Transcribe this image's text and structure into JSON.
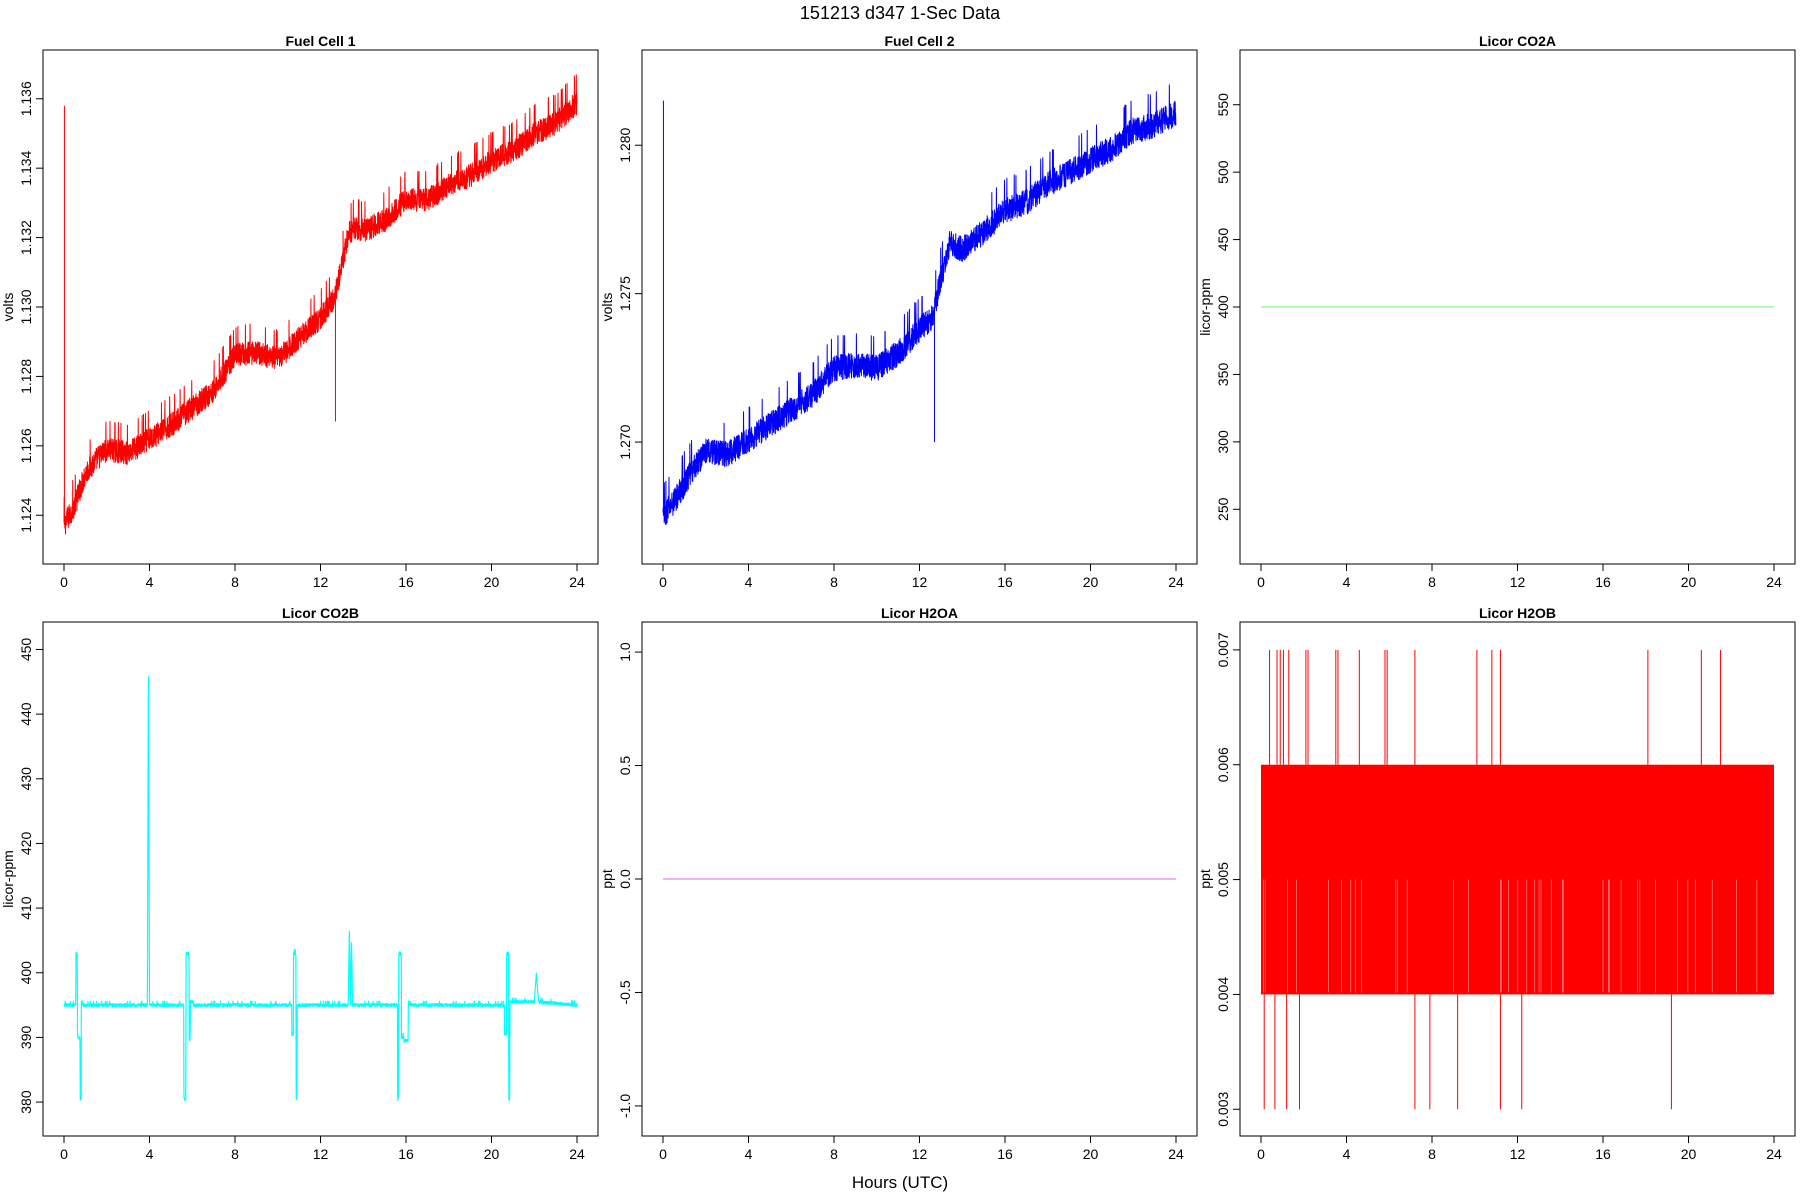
{
  "figure": {
    "title": "151213   d347   1-Sec Data",
    "xlabel": "Hours (UTC)"
  },
  "chart_data": [
    {
      "type": "line",
      "title": "Fuel Cell 1",
      "ylabel": "volts",
      "color": "#ff0000",
      "xlim": [
        0,
        24
      ],
      "ylim": [
        1.1232,
        1.1368
      ],
      "xticks": [
        0,
        4,
        8,
        12,
        16,
        20,
        24
      ],
      "yticks": [
        1.124,
        1.126,
        1.128,
        1.13,
        1.132,
        1.134,
        1.136
      ],
      "ytick_labels": [
        "1.124",
        "1.126",
        "1.128",
        "1.130",
        "1.132",
        "1.134",
        "1.136"
      ],
      "spikes": [
        {
          "x": 0.02,
          "y": 1.1358
        },
        {
          "x": 12.7,
          "y": 1.1267
        }
      ],
      "series": [
        {
          "x": [
            0,
            0.5,
            1,
            1.5,
            2,
            3,
            4,
            5,
            6,
            7,
            8,
            9,
            10,
            11,
            12,
            12.6,
            13,
            13.3,
            13.6,
            14,
            15,
            16,
            17,
            18,
            19,
            20,
            21,
            22,
            23,
            24
          ],
          "values": [
            1.1237,
            1.1243,
            1.1252,
            1.1256,
            1.1259,
            1.1258,
            1.1262,
            1.1266,
            1.1271,
            1.1276,
            1.1286,
            1.1287,
            1.1285,
            1.1291,
            1.1297,
            1.1302,
            1.1312,
            1.1321,
            1.1323,
            1.1322,
            1.1325,
            1.1331,
            1.1331,
            1.1335,
            1.1338,
            1.1342,
            1.1345,
            1.135,
            1.1353,
            1.1359
          ],
          "noise": 0.00035
        }
      ]
    },
    {
      "type": "line",
      "title": "Fuel Cell 2",
      "ylabel": "volts",
      "color": "#0000ff",
      "xlim": [
        0,
        24
      ],
      "ylim": [
        1.2666,
        1.2825
      ],
      "xticks": [
        0,
        4,
        8,
        12,
        16,
        20,
        24
      ],
      "yticks": [
        1.27,
        1.275,
        1.28
      ],
      "ytick_labels": [
        "1.270",
        "1.275",
        "1.280"
      ],
      "spikes": [
        {
          "x": 0.02,
          "y": 1.2815
        },
        {
          "x": 12.7,
          "y": 1.27
        }
      ],
      "series": [
        {
          "x": [
            0,
            0.5,
            1,
            1.5,
            2,
            3,
            4,
            5,
            6,
            7,
            8,
            9,
            10,
            11,
            12,
            12.6,
            13,
            13.4,
            13.8,
            14,
            15,
            16,
            17,
            18,
            19,
            20,
            21,
            22,
            23,
            24
          ],
          "values": [
            1.2675,
            1.268,
            1.2686,
            1.2692,
            1.2697,
            1.2696,
            1.2701,
            1.2706,
            1.2711,
            1.2716,
            1.2725,
            1.2726,
            1.2725,
            1.273,
            1.2738,
            1.2742,
            1.2755,
            1.2767,
            1.2766,
            1.2765,
            1.2771,
            1.2778,
            1.2781,
            1.2787,
            1.2791,
            1.2795,
            1.2799,
            1.2805,
            1.2807,
            1.2811
          ],
          "noise": 0.00045
        }
      ]
    },
    {
      "type": "line",
      "title": "Licor CO2A",
      "ylabel": "licor-ppm",
      "color": "#7fff7f",
      "xlim": [
        0,
        24
      ],
      "ylim": [
        225,
        575
      ],
      "xticks": [
        0,
        4,
        8,
        12,
        16,
        20,
        24
      ],
      "yticks": [
        250,
        300,
        350,
        400,
        450,
        500,
        550
      ],
      "ytick_labels": [
        "250",
        "300",
        "350",
        "400",
        "450",
        "500",
        "550"
      ],
      "series": [
        {
          "x": [
            0,
            24
          ],
          "values": [
            400,
            400
          ],
          "noise": 0
        }
      ]
    },
    {
      "type": "line",
      "title": "Licor CO2B",
      "ylabel": "licor-ppm",
      "color": "#00ffff",
      "xlim": [
        0,
        24
      ],
      "ylim": [
        378,
        451
      ],
      "xticks": [
        0,
        4,
        8,
        12,
        16,
        20,
        24
      ],
      "yticks": [
        380,
        390,
        400,
        410,
        420,
        430,
        440,
        450
      ],
      "ytick_labels": [
        "380",
        "390",
        "400",
        "410",
        "420",
        "430",
        "440",
        "450"
      ],
      "series": [
        {
          "x": [
            0,
            0.55,
            0.56,
            0.62,
            0.63,
            0.75,
            0.76,
            0.8,
            0.81,
            0.86,
            0.87,
            3.9,
            3.95,
            4.0,
            4.05,
            5.6,
            5.61,
            5.7,
            5.71,
            5.85,
            5.86,
            5.9,
            5.91,
            6.05,
            6.06,
            10.65,
            10.66,
            10.73,
            10.74,
            10.85,
            10.86,
            10.9,
            10.91,
            13.3,
            13.35,
            13.4,
            13.45,
            13.5,
            15.6,
            15.61,
            15.65,
            15.66,
            15.78,
            15.79,
            15.9,
            15.91,
            16.1,
            16.11,
            16.15,
            16.16,
            20.6,
            20.61,
            20.7,
            20.71,
            20.8,
            20.81,
            20.85,
            20.86,
            22.0,
            22.1,
            22.2,
            24
          ],
          "values": [
            395,
            395,
            403,
            403,
            390,
            390,
            380.5,
            380.5,
            395.5,
            395.5,
            395,
            395,
            448,
            395,
            395,
            395,
            380.5,
            380.5,
            403,
            403,
            389.5,
            389.5,
            395.5,
            395.5,
            395,
            395,
            390.5,
            390.5,
            403,
            403,
            380.5,
            380.5,
            395,
            395,
            407,
            395,
            405,
            395,
            395,
            380.5,
            380.5,
            403,
            403,
            390,
            390,
            389.5,
            389.5,
            395.5,
            395.5,
            395,
            395,
            390.5,
            390.5,
            403,
            403,
            380.5,
            380.5,
            395.5,
            395.5,
            400,
            395.5,
            395
          ],
          "noise": 0.25
        }
      ]
    },
    {
      "type": "line",
      "title": "Licor H2OA",
      "ylabel": "ppt",
      "color": "#ee82ee",
      "xlim": [
        0,
        24
      ],
      "ylim": [
        -1.04,
        1.04
      ],
      "xticks": [
        0,
        4,
        8,
        12,
        16,
        20,
        24
      ],
      "yticks": [
        -1.0,
        -0.5,
        0.0,
        0.5,
        1.0
      ],
      "ytick_labels": [
        "-1.0",
        "-0.5",
        "0.0",
        "0.5",
        "1.0"
      ],
      "series": [
        {
          "x": [
            0,
            24
          ],
          "values": [
            0,
            0
          ],
          "noise": 0
        }
      ]
    },
    {
      "type": "line",
      "title": "Licor H2OB",
      "ylabel": "ppt",
      "color": "#ff0000",
      "xlim": [
        0,
        24
      ],
      "ylim": [
        0.00295,
        0.00706
      ],
      "xticks": [
        0,
        4,
        8,
        12,
        16,
        20,
        24
      ],
      "yticks": [
        0.003,
        0.004,
        0.005,
        0.006,
        0.007
      ],
      "ytick_labels": [
        "0.003",
        "0.004",
        "0.005",
        "0.006",
        "0.007"
      ],
      "band": [
        0.004,
        0.006
      ],
      "up_spikes": [
        0.4,
        0.75,
        0.9,
        1.05,
        1.3,
        2.1,
        2.2,
        3.5,
        3.6,
        4.6,
        5.8,
        5.9,
        7.2,
        10.1,
        10.8,
        11.2,
        18.1,
        20.6,
        21.5
      ],
      "down_spikes": [
        0.15,
        0.65,
        1.2,
        1.8,
        7.2,
        7.9,
        9.2,
        11.2,
        12.2,
        19.2
      ],
      "series": [
        {
          "x": [
            0,
            24
          ],
          "values": [
            0.004,
            0.006
          ],
          "noise": 0
        }
      ]
    }
  ]
}
